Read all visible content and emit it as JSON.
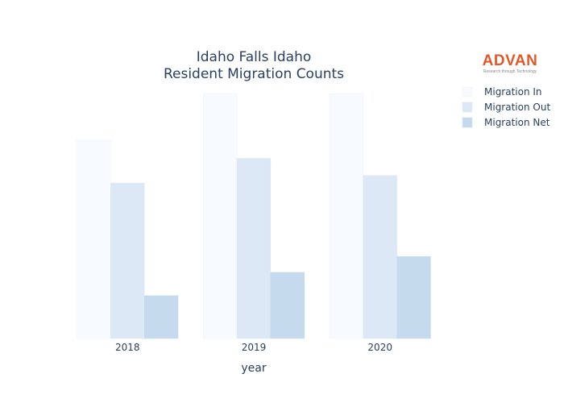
{
  "logo": {
    "name": "ADVAN",
    "tagline": "Research through Technology"
  },
  "chart_data": {
    "type": "bar",
    "title": [
      "Idaho Falls Idaho",
      "Resident Migration Counts"
    ],
    "xlabel": "year",
    "ylabel": "",
    "categories": [
      "2018",
      "2019",
      "2020"
    ],
    "ylim": [
      0,
      100
    ],
    "y_axis_visible": false,
    "grid": false,
    "legend_position": "top-right",
    "series": [
      {
        "name": "Migration In",
        "color": "#f7fafe",
        "stroke": "#eef3fa",
        "values": [
          81,
          100,
          100
        ]
      },
      {
        "name": "Migration Out",
        "color": "#dde8f6",
        "stroke": "#dde8f6",
        "values": [
          63.5,
          73.5,
          66.5
        ]
      },
      {
        "name": "Migration Net",
        "color": "#c6daee",
        "stroke": "#c6daee",
        "values": [
          17.5,
          27,
          33.5
        ]
      }
    ]
  }
}
